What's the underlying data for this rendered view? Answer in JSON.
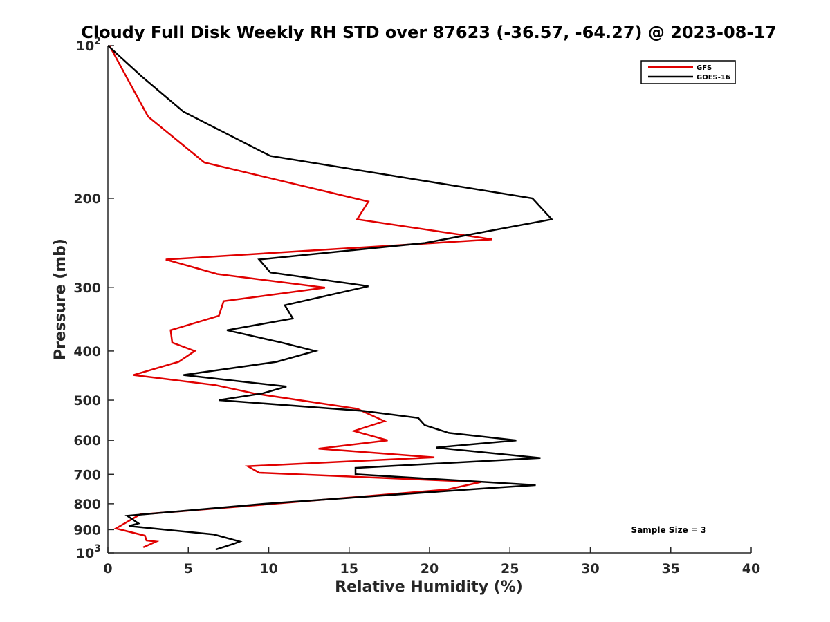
{
  "chart_data": {
    "type": "line",
    "title": "Cloudy Full Disk Weekly RH STD over 87623 (-36.57, -64.27) @ 2023-08-17",
    "xlabel": "Relative Humidity (%)",
    "ylabel": "Pressure (mb)",
    "xlim": [
      0,
      40
    ],
    "ylim": [
      100,
      1000
    ],
    "y_scale": "log",
    "y_reversed": true,
    "grid": false,
    "legend_position": "top-right",
    "x_ticks": [
      "0",
      "5",
      "10",
      "15",
      "20",
      "25",
      "30",
      "35",
      "40"
    ],
    "y_ticks": [
      {
        "value": 100,
        "base": "10",
        "exp": "2"
      },
      {
        "value": 200,
        "text": "200"
      },
      {
        "value": 300,
        "text": "300"
      },
      {
        "value": 400,
        "text": "400"
      },
      {
        "value": 500,
        "text": "500"
      },
      {
        "value": 600,
        "text": "600"
      },
      {
        "value": 700,
        "text": "700"
      },
      {
        "value": 800,
        "text": "800"
      },
      {
        "value": 900,
        "text": "900"
      },
      {
        "value": 1000,
        "base": "10",
        "exp": "3"
      }
    ],
    "series": [
      {
        "name": "GFS",
        "color": "#e00000",
        "points": [
          [
            0.1,
            100
          ],
          [
            1.2,
            116
          ],
          [
            2.5,
            138
          ],
          [
            6.0,
            170
          ],
          [
            16.2,
            203
          ],
          [
            15.5,
            220
          ],
          [
            23.9,
            241
          ],
          [
            3.6,
            264
          ],
          [
            6.8,
            282
          ],
          [
            13.5,
            300
          ],
          [
            7.2,
            319
          ],
          [
            6.9,
            341
          ],
          [
            3.9,
            364
          ],
          [
            4.0,
            385
          ],
          [
            5.4,
            400
          ],
          [
            4.4,
            420
          ],
          [
            1.6,
            446
          ],
          [
            6.7,
            467
          ],
          [
            9.1,
            485
          ],
          [
            15.5,
            520
          ],
          [
            17.2,
            550
          ],
          [
            15.3,
            575
          ],
          [
            17.4,
            600
          ],
          [
            13.1,
            623
          ],
          [
            20.3,
            648
          ],
          [
            8.7,
            675
          ],
          [
            9.4,
            695
          ],
          [
            23.2,
            725
          ],
          [
            21.1,
            750
          ],
          [
            8.3,
            810
          ],
          [
            2.0,
            840
          ],
          [
            0.5,
            895
          ],
          [
            2.3,
            925
          ],
          [
            2.4,
            945
          ],
          [
            3.0,
            950
          ],
          [
            2.2,
            975
          ]
        ]
      },
      {
        "name": "GOES-16",
        "color": "#000000",
        "points": [
          [
            0.0,
            100
          ],
          [
            2.1,
            115
          ],
          [
            4.7,
            135
          ],
          [
            10.1,
            165
          ],
          [
            26.4,
            200
          ],
          [
            27.6,
            220
          ],
          [
            19.7,
            245
          ],
          [
            9.4,
            264
          ],
          [
            10.1,
            280
          ],
          [
            16.2,
            298
          ],
          [
            11.0,
            325
          ],
          [
            11.5,
            345
          ],
          [
            7.4,
            364
          ],
          [
            10.8,
            385
          ],
          [
            12.9,
            400
          ],
          [
            10.5,
            420
          ],
          [
            4.7,
            446
          ],
          [
            11.1,
            470
          ],
          [
            9.6,
            485
          ],
          [
            6.9,
            500
          ],
          [
            15.9,
            525
          ],
          [
            19.3,
            542
          ],
          [
            19.7,
            560
          ],
          [
            21.2,
            580
          ],
          [
            25.4,
            600
          ],
          [
            20.4,
            620
          ],
          [
            26.9,
            650
          ],
          [
            15.4,
            680
          ],
          [
            15.4,
            700
          ],
          [
            26.6,
            735
          ],
          [
            23.7,
            745
          ],
          [
            9.8,
            800
          ],
          [
            1.2,
            845
          ],
          [
            1.9,
            875
          ],
          [
            1.3,
            885
          ],
          [
            6.6,
            920
          ],
          [
            8.2,
            950
          ],
          [
            7.8,
            960
          ],
          [
            6.7,
            985
          ]
        ]
      }
    ],
    "annotation": "Sample Size = 3"
  }
}
